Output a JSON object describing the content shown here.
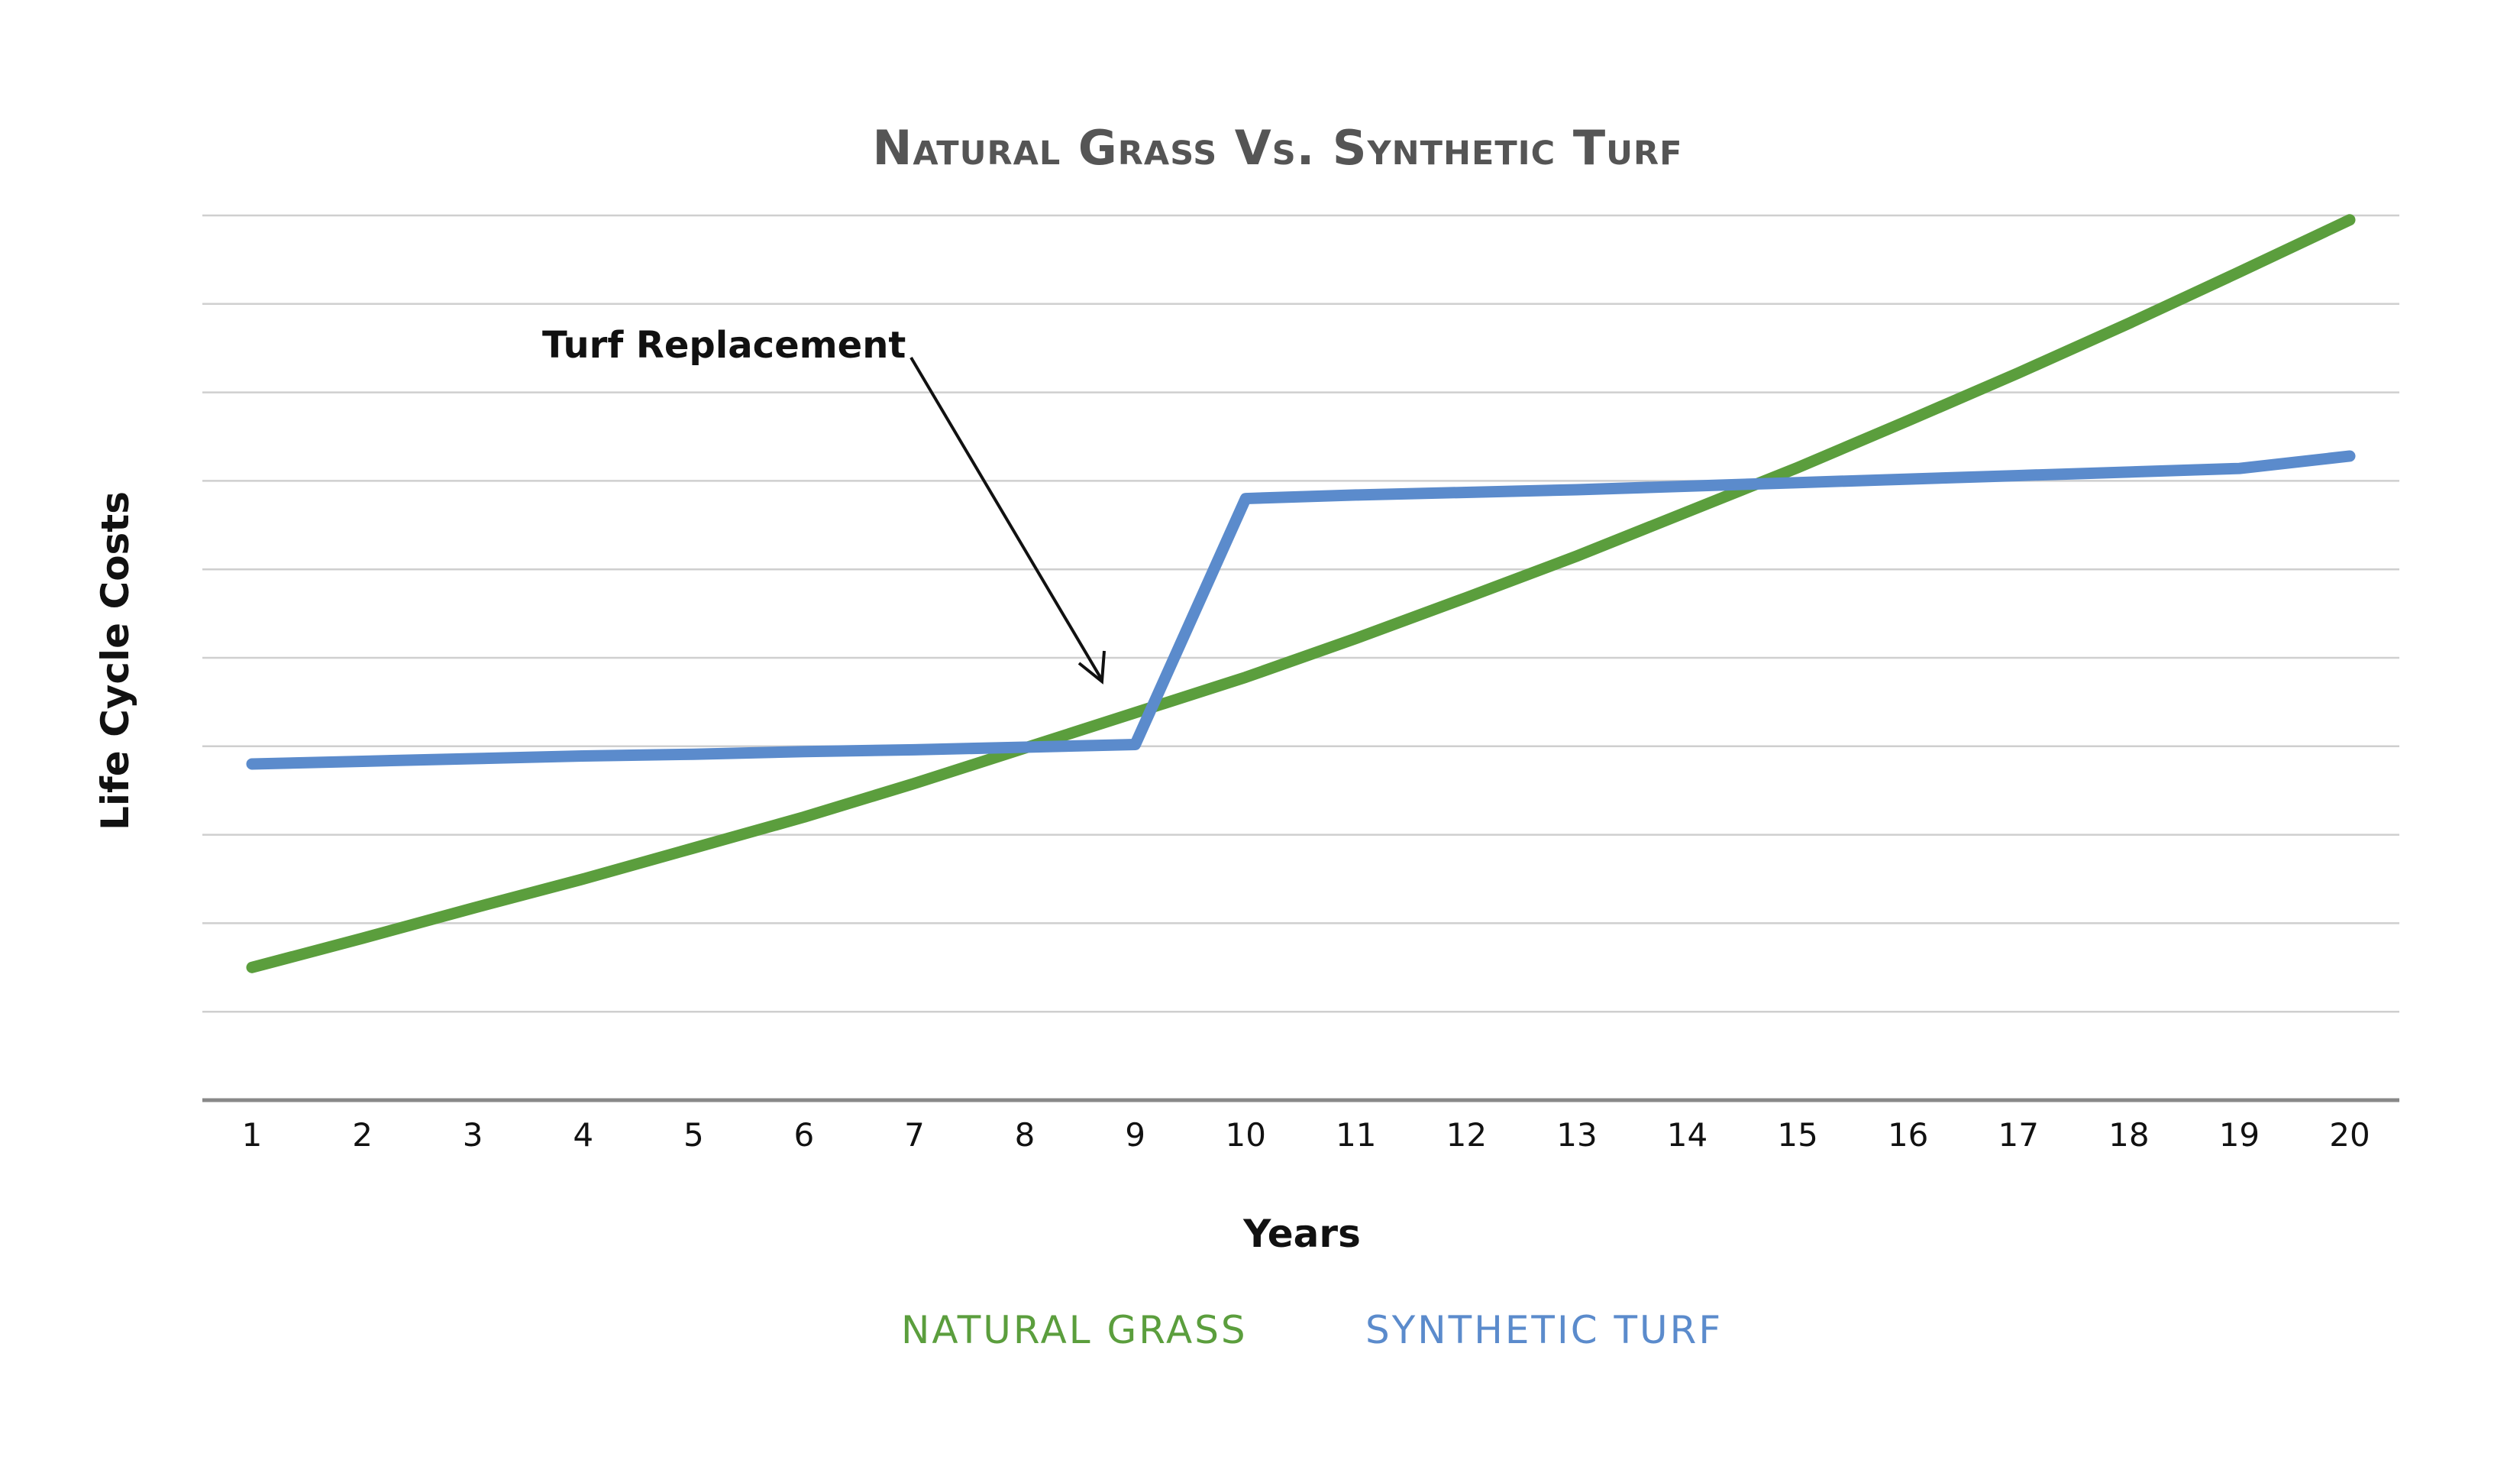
{
  "chart_data": {
    "type": "line",
    "title": "Natural Grass Vs. Synthetic Turf",
    "xlabel": "Years",
    "ylabel": "Life Cycle Costs",
    "categories": [
      "1",
      "2",
      "3",
      "4",
      "5",
      "6",
      "7",
      "8",
      "9",
      "10",
      "11",
      "12",
      "13",
      "14",
      "15",
      "16",
      "17",
      "18",
      "19",
      "20"
    ],
    "ylim": [
      0,
      10
    ],
    "y_gridlines": 10,
    "y_tick_labels_shown": false,
    "grid": true,
    "legend_position": "bottom-center",
    "series": [
      {
        "name": "NATURAL GRASS",
        "color": "#5b9e3d",
        "values": [
          1.5,
          1.83,
          2.17,
          2.5,
          2.85,
          3.2,
          3.58,
          3.98,
          4.38,
          4.78,
          5.22,
          5.68,
          6.15,
          6.65,
          7.15,
          7.68,
          8.22,
          8.78,
          9.36,
          9.95
        ]
      },
      {
        "name": "SYNTHETIC TURF",
        "color": "#5b8bcc",
        "values": [
          3.8,
          3.83,
          3.86,
          3.89,
          3.91,
          3.94,
          3.96,
          3.99,
          4.02,
          6.8,
          6.84,
          6.87,
          6.9,
          6.94,
          6.98,
          7.02,
          7.06,
          7.1,
          7.14,
          7.28
        ]
      }
    ],
    "annotations": [
      {
        "text": "Turf Replacement",
        "target_category": "9",
        "arrow": true
      }
    ]
  },
  "colors": {
    "title": "#555555",
    "text": "#111111",
    "gridline": "#cfcfcf",
    "baseline": "#888888"
  }
}
